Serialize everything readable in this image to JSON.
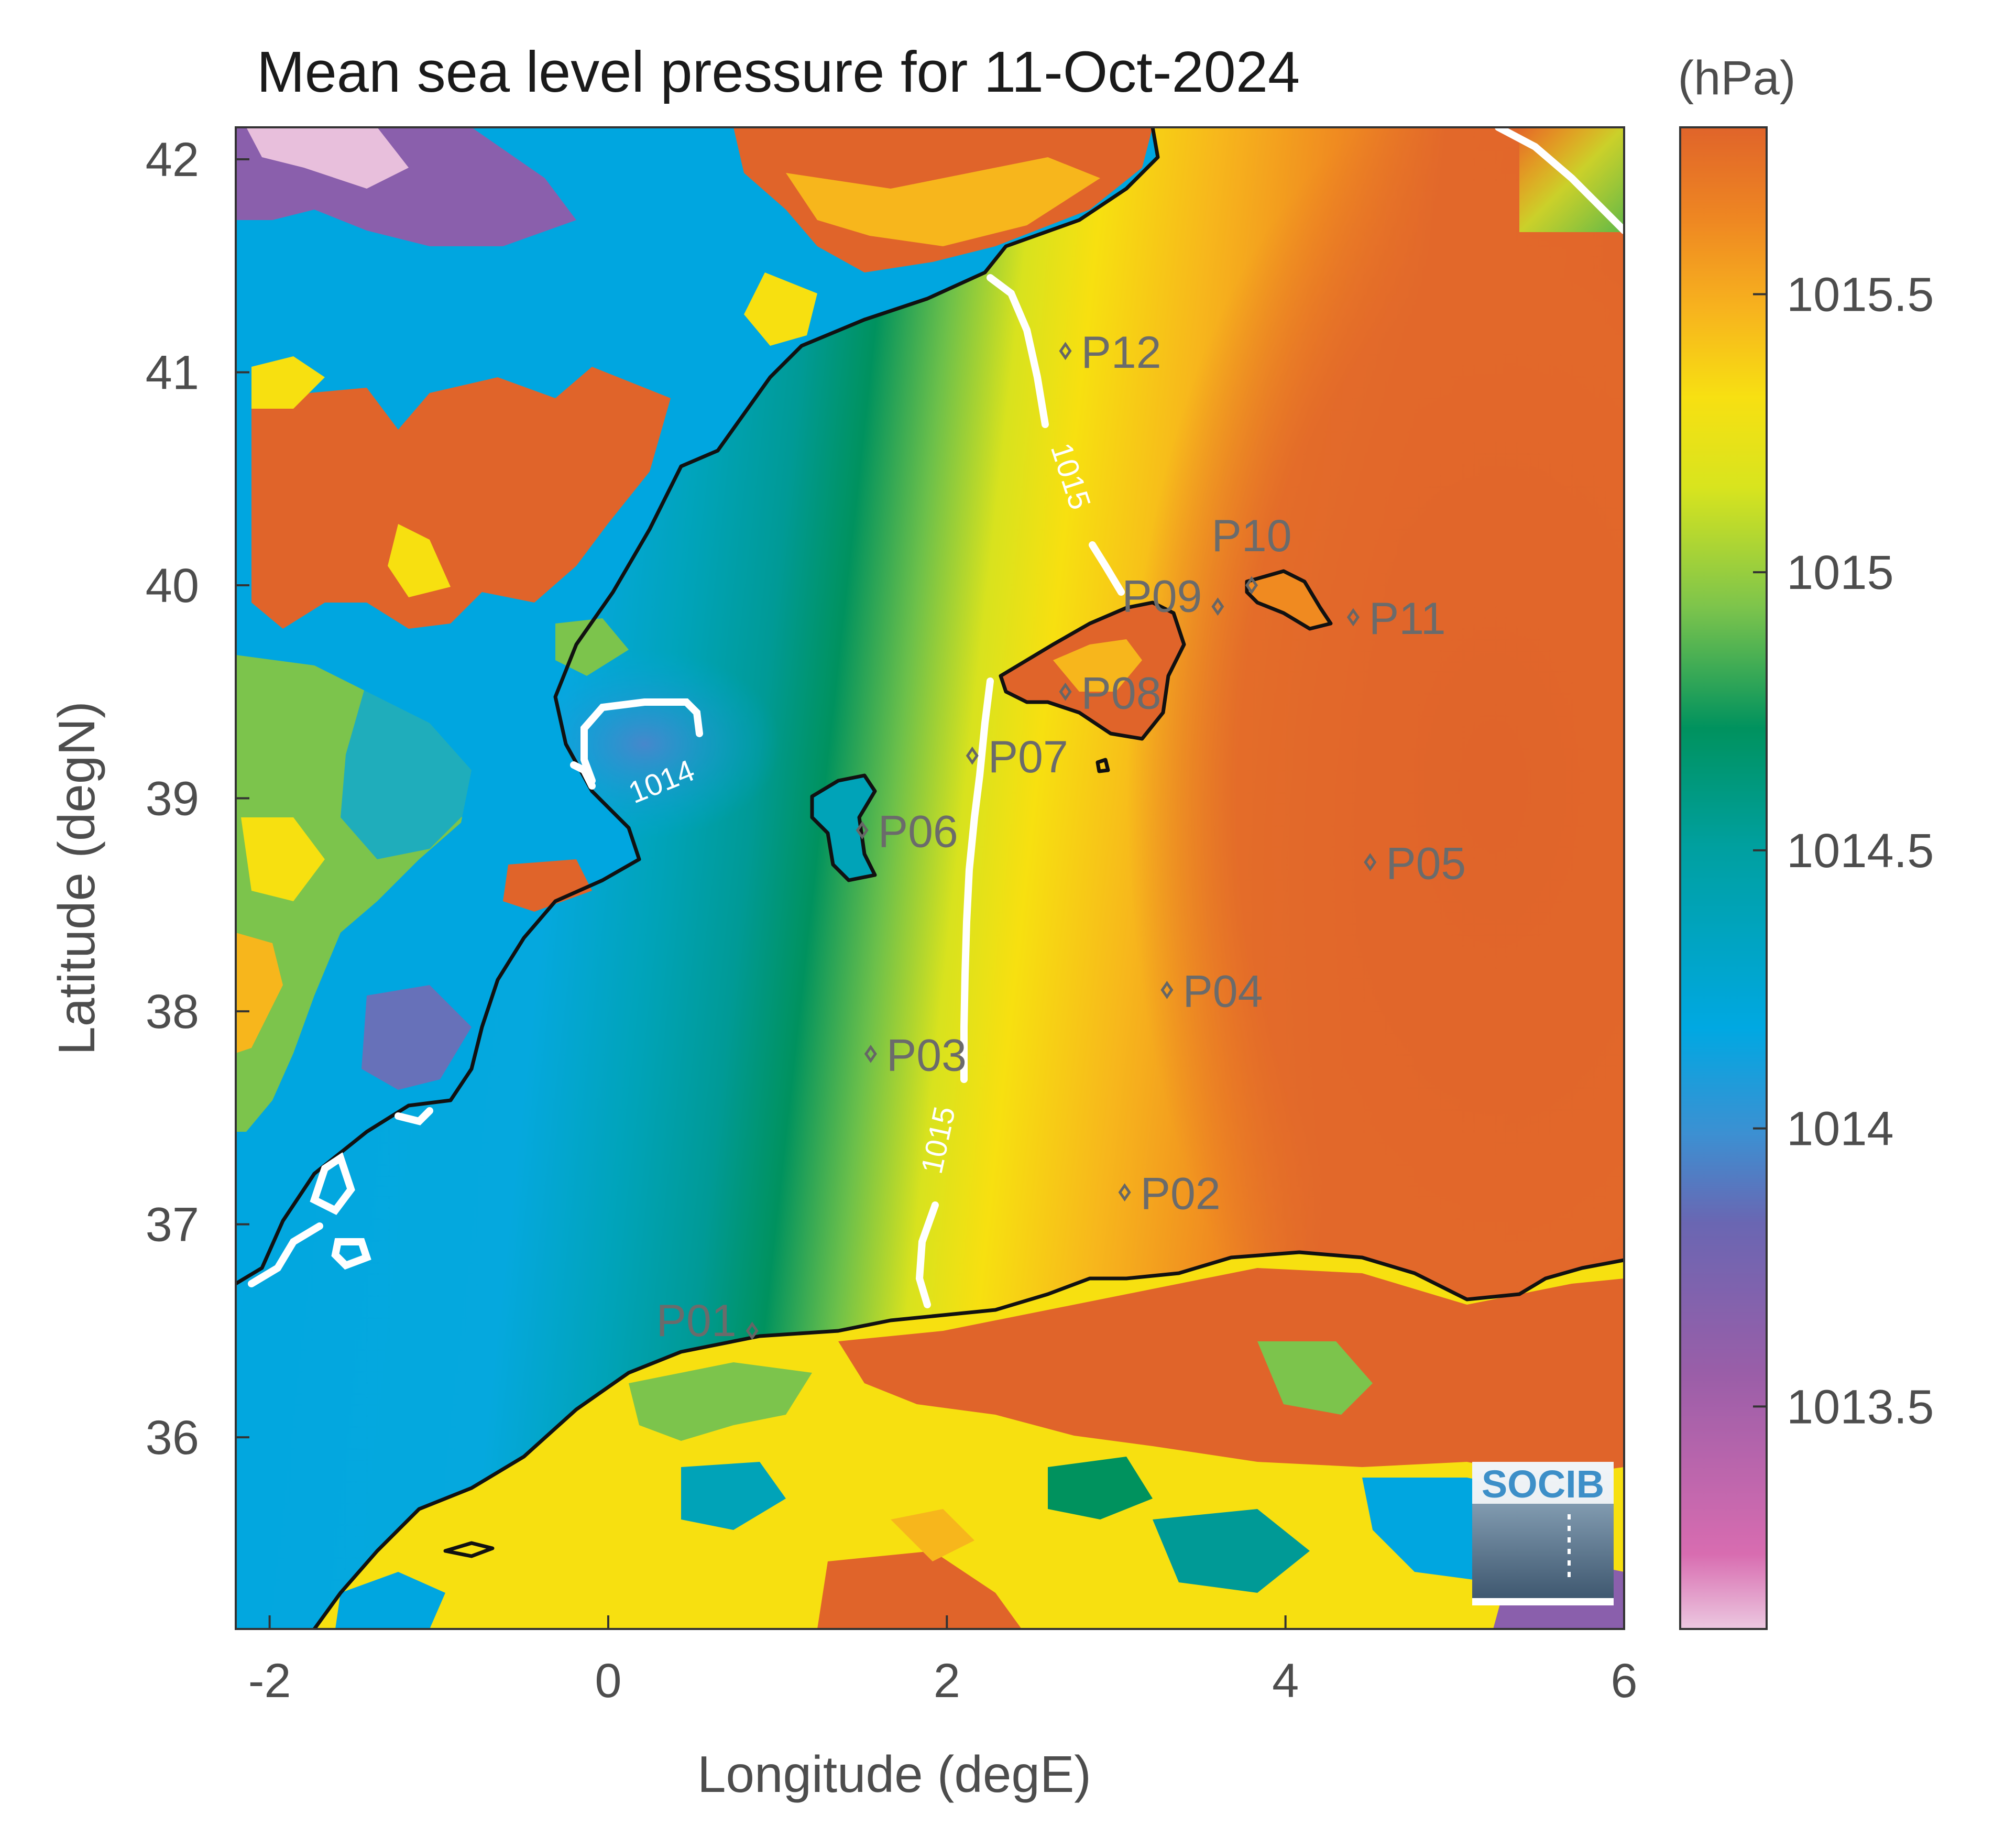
{
  "title": "Mean sea level pressure for 11-Oct-2024",
  "units": "(hPa)",
  "x_axis": {
    "label": "Longitude (degE)",
    "range": [
      -2.2,
      6.0
    ],
    "ticks": [
      {
        "value": -2,
        "label": "-2"
      },
      {
        "value": 0,
        "label": "0"
      },
      {
        "value": 2,
        "label": "2"
      },
      {
        "value": 4,
        "label": "4"
      },
      {
        "value": 6,
        "label": "6"
      }
    ]
  },
  "y_axis": {
    "label": "Latitude (degN)",
    "range": [
      35.1,
      42.15
    ],
    "ticks": [
      {
        "value": 36,
        "label": "36"
      },
      {
        "value": 37,
        "label": "37"
      },
      {
        "value": 38,
        "label": "38"
      },
      {
        "value": 39,
        "label": "39"
      },
      {
        "value": 40,
        "label": "40"
      },
      {
        "value": 41,
        "label": "41"
      },
      {
        "value": 42,
        "label": "42"
      }
    ]
  },
  "colorbar": {
    "range": [
      1013.1,
      1015.8
    ],
    "ticks": [
      {
        "value": 1013.5,
        "label": "1013.5"
      },
      {
        "value": 1014,
        "label": "1014"
      },
      {
        "value": 1014.5,
        "label": "1014.5"
      },
      {
        "value": 1015,
        "label": "1015"
      },
      {
        "value": 1015.5,
        "label": "1015.5"
      }
    ],
    "colors": [
      "#e8bfdc",
      "#d264a8",
      "#9a5ea8",
      "#6e64b0",
      "#3f8fd0",
      "#00a6e0",
      "#009aa8",
      "#008f5c",
      "#7cc24a",
      "#d4e020",
      "#f8e010",
      "#f8b820",
      "#f08a20",
      "#e0642a"
    ]
  },
  "contours": [
    {
      "label": "1014"
    },
    {
      "label": "1015"
    },
    {
      "label": "1015"
    }
  ],
  "stations": [
    {
      "id": "P01",
      "lon": 0.85,
      "lat": 36.5
    },
    {
      "id": "P02",
      "lon": 3.05,
      "lat": 37.15
    },
    {
      "id": "P03",
      "lon": 1.55,
      "lat": 37.8
    },
    {
      "id": "P04",
      "lon": 3.3,
      "lat": 38.1
    },
    {
      "id": "P05",
      "lon": 4.5,
      "lat": 38.7
    },
    {
      "id": "P06",
      "lon": 1.5,
      "lat": 38.85
    },
    {
      "id": "P07",
      "lon": 2.15,
      "lat": 39.2
    },
    {
      "id": "P08",
      "lon": 2.7,
      "lat": 39.5
    },
    {
      "id": "P09",
      "lon": 3.6,
      "lat": 39.9
    },
    {
      "id": "P10",
      "lon": 3.8,
      "lat": 40.0
    },
    {
      "id": "P11",
      "lon": 4.4,
      "lat": 39.85
    },
    {
      "id": "P12",
      "lon": 2.7,
      "lat": 41.1
    }
  ],
  "logo": {
    "text": "SOCIB"
  },
  "style": {
    "coastline": "#111111",
    "contour": "#ffffff",
    "frame": "#333333"
  }
}
